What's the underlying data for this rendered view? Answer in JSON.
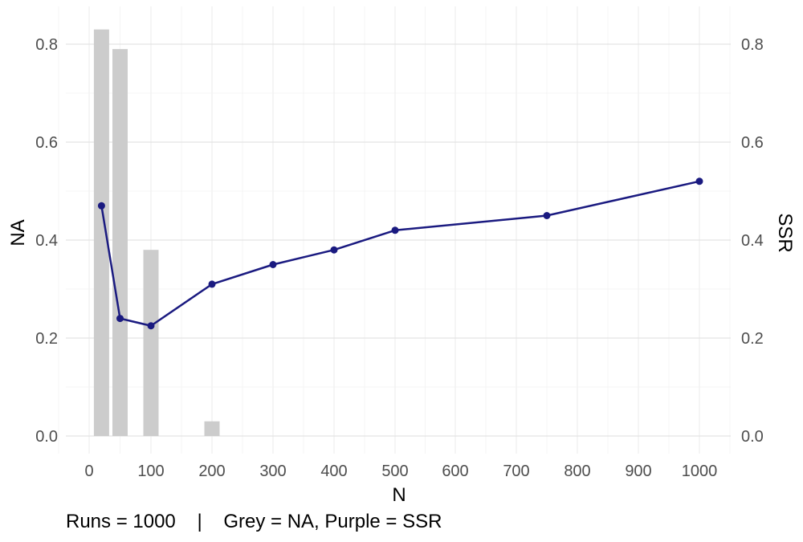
{
  "chart_data": {
    "type": "bar+line",
    "x_tick_labels": [
      "0",
      "100",
      "200",
      "300",
      "400",
      "500",
      "600",
      "700",
      "800",
      "900",
      "1000"
    ],
    "xlabel": "N",
    "ylabel_left": "NA",
    "ylabel_right": "SSR",
    "ylim": [
      0,
      0.85
    ],
    "y_ticks": [
      0.0,
      0.2,
      0.4,
      0.6,
      0.8
    ],
    "y_tick_labels": [
      "0.0",
      "0.2",
      "0.4",
      "0.6",
      "0.8"
    ],
    "grid": true,
    "bars": {
      "color": "#cccccc",
      "x": [
        20,
        50,
        100,
        200
      ],
      "values": [
        0.83,
        0.79,
        0.38,
        0.03
      ]
    },
    "line": {
      "color": "#1a1a80",
      "x": [
        20,
        50,
        100,
        200,
        300,
        400,
        500,
        750,
        1000
      ],
      "values": [
        0.47,
        0.24,
        0.225,
        0.31,
        0.35,
        0.38,
        0.42,
        0.45,
        0.52
      ]
    }
  },
  "caption": "Runs = 1000    |    Grey = NA, Purple = SSR"
}
